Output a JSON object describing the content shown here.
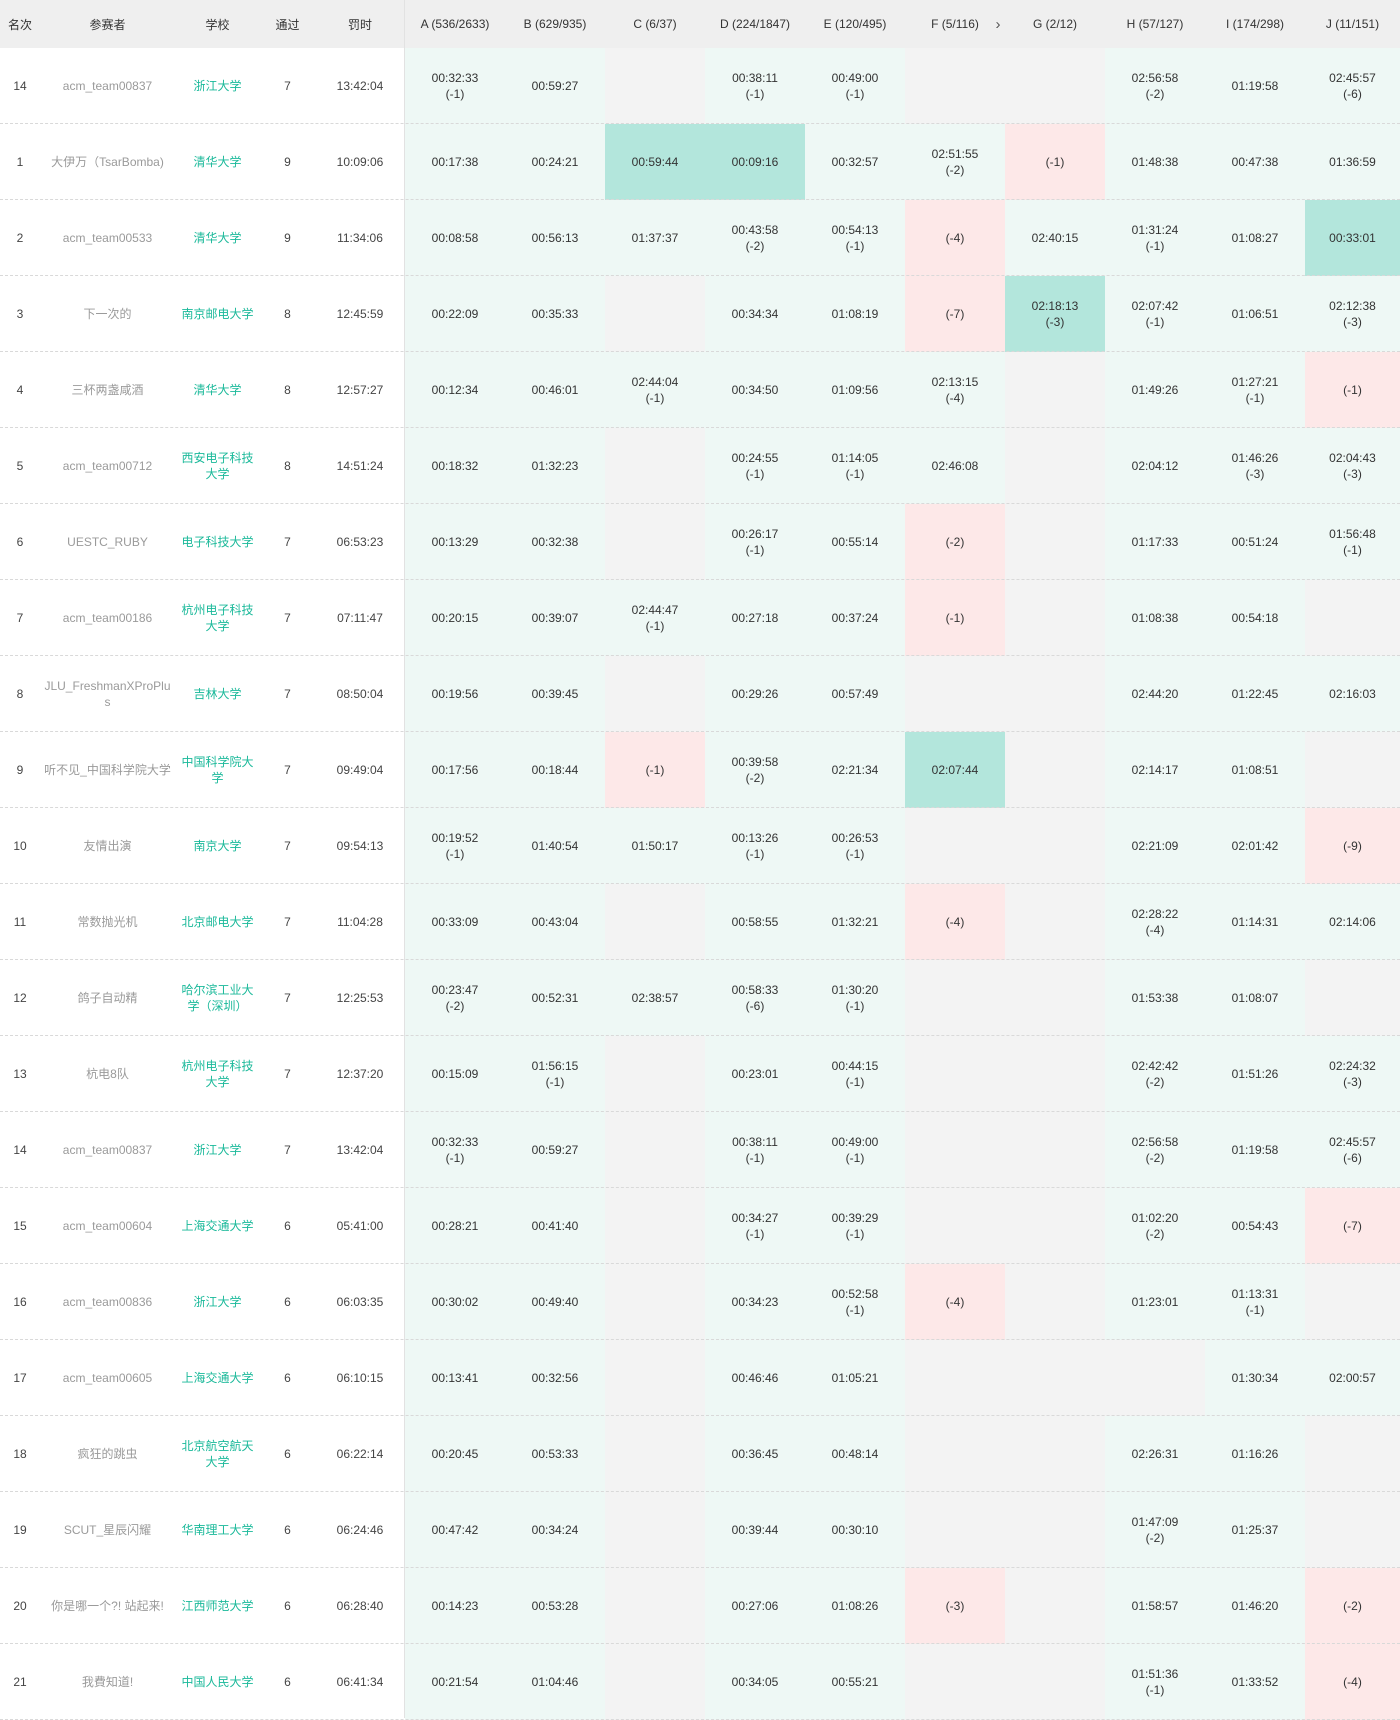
{
  "headers": [
    "名次",
    "参赛者",
    "学校",
    "通过",
    "罚时",
    "A (536/2633)",
    "B (629/935)",
    "C (6/37)",
    "D (224/1847)",
    "E (120/495)",
    "F (5/116)",
    "G (2/12)",
    "H (57/127)",
    "I (174/298)",
    "J (11/151)"
  ],
  "header_chevron": "›",
  "colors": {
    "accepted": "#eef8f5",
    "first_blood": "#b3e6dc",
    "wrong": "#fde8e8",
    "empty": "#f3f3f3",
    "school_link": "#1bb99a",
    "name_text": "#9a9a9a"
  },
  "rows": [
    {
      "rank": "14",
      "name": "acm_team00837",
      "school": "浙江大学",
      "solved": "7",
      "penalty": "13:42:04",
      "problems": [
        {
          "s": "ac",
          "t": "00:32:33",
          "n": "(-1)"
        },
        {
          "s": "ac",
          "t": "00:59:27"
        },
        {
          "s": "none"
        },
        {
          "s": "ac",
          "t": "00:38:11",
          "n": "(-1)"
        },
        {
          "s": "ac",
          "t": "00:49:00",
          "n": "(-1)"
        },
        {
          "s": "none"
        },
        {
          "s": "none"
        },
        {
          "s": "ac",
          "t": "02:56:58",
          "n": "(-2)"
        },
        {
          "s": "ac",
          "t": "01:19:58"
        },
        {
          "s": "ac",
          "t": "02:45:57",
          "n": "(-6)"
        }
      ]
    },
    {
      "rank": "1",
      "name": "大伊万（TsarBomba)",
      "school": "清华大学",
      "solved": "9",
      "penalty": "10:09:06",
      "problems": [
        {
          "s": "ac",
          "t": "00:17:38"
        },
        {
          "s": "ac",
          "t": "00:24:21"
        },
        {
          "s": "first",
          "t": "00:59:44"
        },
        {
          "s": "first",
          "t": "00:09:16"
        },
        {
          "s": "ac",
          "t": "00:32:57"
        },
        {
          "s": "ac",
          "t": "02:51:55",
          "n": "(-2)"
        },
        {
          "s": "wa",
          "t": "(-1)"
        },
        {
          "s": "ac",
          "t": "01:48:38"
        },
        {
          "s": "ac",
          "t": "00:47:38"
        },
        {
          "s": "ac",
          "t": "01:36:59"
        }
      ]
    },
    {
      "rank": "2",
      "name": "acm_team00533",
      "school": "清华大学",
      "solved": "9",
      "penalty": "11:34:06",
      "problems": [
        {
          "s": "ac",
          "t": "00:08:58"
        },
        {
          "s": "ac",
          "t": "00:56:13"
        },
        {
          "s": "ac",
          "t": "01:37:37"
        },
        {
          "s": "ac",
          "t": "00:43:58",
          "n": "(-2)"
        },
        {
          "s": "ac",
          "t": "00:54:13",
          "n": "(-1)"
        },
        {
          "s": "wa",
          "t": "(-4)"
        },
        {
          "s": "ac",
          "t": "02:40:15"
        },
        {
          "s": "ac",
          "t": "01:31:24",
          "n": "(-1)"
        },
        {
          "s": "ac",
          "t": "01:08:27"
        },
        {
          "s": "first",
          "t": "00:33:01"
        }
      ]
    },
    {
      "rank": "3",
      "name": "下一次的",
      "school": "南京邮电大学",
      "solved": "8",
      "penalty": "12:45:59",
      "problems": [
        {
          "s": "ac",
          "t": "00:22:09"
        },
        {
          "s": "ac",
          "t": "00:35:33"
        },
        {
          "s": "none"
        },
        {
          "s": "ac",
          "t": "00:34:34"
        },
        {
          "s": "ac",
          "t": "01:08:19"
        },
        {
          "s": "wa",
          "t": "(-7)"
        },
        {
          "s": "first",
          "t": "02:18:13",
          "n": "(-3)"
        },
        {
          "s": "ac",
          "t": "02:07:42",
          "n": "(-1)"
        },
        {
          "s": "ac",
          "t": "01:06:51"
        },
        {
          "s": "ac",
          "t": "02:12:38",
          "n": "(-3)"
        }
      ]
    },
    {
      "rank": "4",
      "name": "三杯两盏咸酒",
      "school": "清华大学",
      "solved": "8",
      "penalty": "12:57:27",
      "problems": [
        {
          "s": "ac",
          "t": "00:12:34"
        },
        {
          "s": "ac",
          "t": "00:46:01"
        },
        {
          "s": "ac",
          "t": "02:44:04",
          "n": "(-1)"
        },
        {
          "s": "ac",
          "t": "00:34:50"
        },
        {
          "s": "ac",
          "t": "01:09:56"
        },
        {
          "s": "ac",
          "t": "02:13:15",
          "n": "(-4)"
        },
        {
          "s": "none"
        },
        {
          "s": "ac",
          "t": "01:49:26"
        },
        {
          "s": "ac",
          "t": "01:27:21",
          "n": "(-1)"
        },
        {
          "s": "wa",
          "t": "(-1)"
        }
      ]
    },
    {
      "rank": "5",
      "name": "acm_team00712",
      "school": "西安电子科技大学",
      "solved": "8",
      "penalty": "14:51:24",
      "problems": [
        {
          "s": "ac",
          "t": "00:18:32"
        },
        {
          "s": "ac",
          "t": "01:32:23"
        },
        {
          "s": "none"
        },
        {
          "s": "ac",
          "t": "00:24:55",
          "n": "(-1)"
        },
        {
          "s": "ac",
          "t": "01:14:05",
          "n": "(-1)"
        },
        {
          "s": "ac",
          "t": "02:46:08"
        },
        {
          "s": "none"
        },
        {
          "s": "ac",
          "t": "02:04:12"
        },
        {
          "s": "ac",
          "t": "01:46:26",
          "n": "(-3)"
        },
        {
          "s": "ac",
          "t": "02:04:43",
          "n": "(-3)"
        }
      ]
    },
    {
      "rank": "6",
      "name": "UESTC_RUBY",
      "school": "电子科技大学",
      "solved": "7",
      "penalty": "06:53:23",
      "problems": [
        {
          "s": "ac",
          "t": "00:13:29"
        },
        {
          "s": "ac",
          "t": "00:32:38"
        },
        {
          "s": "none"
        },
        {
          "s": "ac",
          "t": "00:26:17",
          "n": "(-1)"
        },
        {
          "s": "ac",
          "t": "00:55:14"
        },
        {
          "s": "wa",
          "t": "(-2)"
        },
        {
          "s": "none"
        },
        {
          "s": "ac",
          "t": "01:17:33"
        },
        {
          "s": "ac",
          "t": "00:51:24"
        },
        {
          "s": "ac",
          "t": "01:56:48",
          "n": "(-1)"
        }
      ]
    },
    {
      "rank": "7",
      "name": "acm_team00186",
      "school": "杭州电子科技大学",
      "solved": "7",
      "penalty": "07:11:47",
      "problems": [
        {
          "s": "ac",
          "t": "00:20:15"
        },
        {
          "s": "ac",
          "t": "00:39:07"
        },
        {
          "s": "ac",
          "t": "02:44:47",
          "n": "(-1)"
        },
        {
          "s": "ac",
          "t": "00:27:18"
        },
        {
          "s": "ac",
          "t": "00:37:24"
        },
        {
          "s": "wa",
          "t": "(-1)"
        },
        {
          "s": "none"
        },
        {
          "s": "ac",
          "t": "01:08:38"
        },
        {
          "s": "ac",
          "t": "00:54:18"
        },
        {
          "s": "none"
        }
      ]
    },
    {
      "rank": "8",
      "name": "JLU_FreshmanXProPlus",
      "school": "吉林大学",
      "solved": "7",
      "penalty": "08:50:04",
      "problems": [
        {
          "s": "ac",
          "t": "00:19:56"
        },
        {
          "s": "ac",
          "t": "00:39:45"
        },
        {
          "s": "none"
        },
        {
          "s": "ac",
          "t": "00:29:26"
        },
        {
          "s": "ac",
          "t": "00:57:49"
        },
        {
          "s": "none"
        },
        {
          "s": "none"
        },
        {
          "s": "ac",
          "t": "02:44:20"
        },
        {
          "s": "ac",
          "t": "01:22:45"
        },
        {
          "s": "ac",
          "t": "02:16:03"
        }
      ]
    },
    {
      "rank": "9",
      "name": "听不见_中国科学院大学",
      "school": "中国科学院大学",
      "solved": "7",
      "penalty": "09:49:04",
      "problems": [
        {
          "s": "ac",
          "t": "00:17:56"
        },
        {
          "s": "ac",
          "t": "00:18:44"
        },
        {
          "s": "wa",
          "t": "(-1)"
        },
        {
          "s": "ac",
          "t": "00:39:58",
          "n": "(-2)"
        },
        {
          "s": "ac",
          "t": "02:21:34"
        },
        {
          "s": "first",
          "t": "02:07:44"
        },
        {
          "s": "none"
        },
        {
          "s": "ac",
          "t": "02:14:17"
        },
        {
          "s": "ac",
          "t": "01:08:51"
        },
        {
          "s": "none"
        }
      ]
    },
    {
      "rank": "10",
      "name": "友情出演",
      "school": "南京大学",
      "solved": "7",
      "penalty": "09:54:13",
      "problems": [
        {
          "s": "ac",
          "t": "00:19:52",
          "n": "(-1)"
        },
        {
          "s": "ac",
          "t": "01:40:54"
        },
        {
          "s": "ac",
          "t": "01:50:17"
        },
        {
          "s": "ac",
          "t": "00:13:26",
          "n": "(-1)"
        },
        {
          "s": "ac",
          "t": "00:26:53",
          "n": "(-1)"
        },
        {
          "s": "none"
        },
        {
          "s": "none"
        },
        {
          "s": "ac",
          "t": "02:21:09"
        },
        {
          "s": "ac",
          "t": "02:01:42"
        },
        {
          "s": "wa",
          "t": "(-9)"
        }
      ]
    },
    {
      "rank": "11",
      "name": "常数抛光机",
      "school": "北京邮电大学",
      "solved": "7",
      "penalty": "11:04:28",
      "problems": [
        {
          "s": "ac",
          "t": "00:33:09"
        },
        {
          "s": "ac",
          "t": "00:43:04"
        },
        {
          "s": "none"
        },
        {
          "s": "ac",
          "t": "00:58:55"
        },
        {
          "s": "ac",
          "t": "01:32:21"
        },
        {
          "s": "wa",
          "t": "(-4)"
        },
        {
          "s": "none"
        },
        {
          "s": "ac",
          "t": "02:28:22",
          "n": "(-4)"
        },
        {
          "s": "ac",
          "t": "01:14:31"
        },
        {
          "s": "ac",
          "t": "02:14:06"
        }
      ]
    },
    {
      "rank": "12",
      "name": "鸽子自动精",
      "school": "哈尔滨工业大学（深圳）",
      "solved": "7",
      "penalty": "12:25:53",
      "problems": [
        {
          "s": "ac",
          "t": "00:23:47",
          "n": "(-2)"
        },
        {
          "s": "ac",
          "t": "00:52:31"
        },
        {
          "s": "ac",
          "t": "02:38:57"
        },
        {
          "s": "ac",
          "t": "00:58:33",
          "n": "(-6)"
        },
        {
          "s": "ac",
          "t": "01:30:20",
          "n": "(-1)"
        },
        {
          "s": "none"
        },
        {
          "s": "none"
        },
        {
          "s": "ac",
          "t": "01:53:38"
        },
        {
          "s": "ac",
          "t": "01:08:07"
        },
        {
          "s": "none"
        }
      ]
    },
    {
      "rank": "13",
      "name": "杭电8队",
      "school": "杭州电子科技大学",
      "solved": "7",
      "penalty": "12:37:20",
      "problems": [
        {
          "s": "ac",
          "t": "00:15:09"
        },
        {
          "s": "ac",
          "t": "01:56:15",
          "n": "(-1)"
        },
        {
          "s": "none"
        },
        {
          "s": "ac",
          "t": "00:23:01"
        },
        {
          "s": "ac",
          "t": "00:44:15",
          "n": "(-1)"
        },
        {
          "s": "none"
        },
        {
          "s": "none"
        },
        {
          "s": "ac",
          "t": "02:42:42",
          "n": "(-2)"
        },
        {
          "s": "ac",
          "t": "01:51:26"
        },
        {
          "s": "ac",
          "t": "02:24:32",
          "n": "(-3)"
        }
      ]
    },
    {
      "rank": "14",
      "name": "acm_team00837",
      "school": "浙江大学",
      "solved": "7",
      "penalty": "13:42:04",
      "problems": [
        {
          "s": "ac",
          "t": "00:32:33",
          "n": "(-1)"
        },
        {
          "s": "ac",
          "t": "00:59:27"
        },
        {
          "s": "none"
        },
        {
          "s": "ac",
          "t": "00:38:11",
          "n": "(-1)"
        },
        {
          "s": "ac",
          "t": "00:49:00",
          "n": "(-1)"
        },
        {
          "s": "none"
        },
        {
          "s": "none"
        },
        {
          "s": "ac",
          "t": "02:56:58",
          "n": "(-2)"
        },
        {
          "s": "ac",
          "t": "01:19:58"
        },
        {
          "s": "ac",
          "t": "02:45:57",
          "n": "(-6)"
        }
      ]
    },
    {
      "rank": "15",
      "name": "acm_team00604",
      "school": "上海交通大学",
      "solved": "6",
      "penalty": "05:41:00",
      "problems": [
        {
          "s": "ac",
          "t": "00:28:21"
        },
        {
          "s": "ac",
          "t": "00:41:40"
        },
        {
          "s": "none"
        },
        {
          "s": "ac",
          "t": "00:34:27",
          "n": "(-1)"
        },
        {
          "s": "ac",
          "t": "00:39:29",
          "n": "(-1)"
        },
        {
          "s": "none"
        },
        {
          "s": "none"
        },
        {
          "s": "ac",
          "t": "01:02:20",
          "n": "(-2)"
        },
        {
          "s": "ac",
          "t": "00:54:43"
        },
        {
          "s": "wa",
          "t": "(-7)"
        }
      ]
    },
    {
      "rank": "16",
      "name": "acm_team00836",
      "school": "浙江大学",
      "solved": "6",
      "penalty": "06:03:35",
      "problems": [
        {
          "s": "ac",
          "t": "00:30:02"
        },
        {
          "s": "ac",
          "t": "00:49:40"
        },
        {
          "s": "none"
        },
        {
          "s": "ac",
          "t": "00:34:23"
        },
        {
          "s": "ac",
          "t": "00:52:58",
          "n": "(-1)"
        },
        {
          "s": "wa",
          "t": "(-4)"
        },
        {
          "s": "none"
        },
        {
          "s": "ac",
          "t": "01:23:01"
        },
        {
          "s": "ac",
          "t": "01:13:31",
          "n": "(-1)"
        },
        {
          "s": "none"
        }
      ]
    },
    {
      "rank": "17",
      "name": "acm_team00605",
      "school": "上海交通大学",
      "solved": "6",
      "penalty": "06:10:15",
      "problems": [
        {
          "s": "ac",
          "t": "00:13:41"
        },
        {
          "s": "ac",
          "t": "00:32:56"
        },
        {
          "s": "none"
        },
        {
          "s": "ac",
          "t": "00:46:46"
        },
        {
          "s": "ac",
          "t": "01:05:21"
        },
        {
          "s": "none"
        },
        {
          "s": "none"
        },
        {
          "s": "none"
        },
        {
          "s": "ac",
          "t": "01:30:34"
        },
        {
          "s": "ac",
          "t": "02:00:57"
        }
      ]
    },
    {
      "rank": "18",
      "name": "疯狂的跳虫",
      "school": "北京航空航天大学",
      "solved": "6",
      "penalty": "06:22:14",
      "problems": [
        {
          "s": "ac",
          "t": "00:20:45"
        },
        {
          "s": "ac",
          "t": "00:53:33"
        },
        {
          "s": "none"
        },
        {
          "s": "ac",
          "t": "00:36:45"
        },
        {
          "s": "ac",
          "t": "00:48:14"
        },
        {
          "s": "none"
        },
        {
          "s": "none"
        },
        {
          "s": "ac",
          "t": "02:26:31"
        },
        {
          "s": "ac",
          "t": "01:16:26"
        },
        {
          "s": "none"
        }
      ]
    },
    {
      "rank": "19",
      "name": "SCUT_星辰闪耀",
      "school": "华南理工大学",
      "solved": "6",
      "penalty": "06:24:46",
      "problems": [
        {
          "s": "ac",
          "t": "00:47:42"
        },
        {
          "s": "ac",
          "t": "00:34:24"
        },
        {
          "s": "none"
        },
        {
          "s": "ac",
          "t": "00:39:44"
        },
        {
          "s": "ac",
          "t": "00:30:10"
        },
        {
          "s": "none"
        },
        {
          "s": "none"
        },
        {
          "s": "ac",
          "t": "01:47:09",
          "n": "(-2)"
        },
        {
          "s": "ac",
          "t": "01:25:37"
        },
        {
          "s": "none"
        }
      ]
    },
    {
      "rank": "20",
      "name": "你是哪一个?! 站起来!",
      "school": "江西师范大学",
      "solved": "6",
      "penalty": "06:28:40",
      "problems": [
        {
          "s": "ac",
          "t": "00:14:23"
        },
        {
          "s": "ac",
          "t": "00:53:28"
        },
        {
          "s": "none"
        },
        {
          "s": "ac",
          "t": "00:27:06"
        },
        {
          "s": "ac",
          "t": "01:08:26"
        },
        {
          "s": "wa",
          "t": "(-3)"
        },
        {
          "s": "none"
        },
        {
          "s": "ac",
          "t": "01:58:57"
        },
        {
          "s": "ac",
          "t": "01:46:20"
        },
        {
          "s": "wa",
          "t": "(-2)"
        }
      ]
    },
    {
      "rank": "21",
      "name": "我費知道!",
      "school": "中国人民大学",
      "solved": "6",
      "penalty": "06:41:34",
      "problems": [
        {
          "s": "ac",
          "t": "00:21:54"
        },
        {
          "s": "ac",
          "t": "01:04:46"
        },
        {
          "s": "none"
        },
        {
          "s": "ac",
          "t": "00:34:05"
        },
        {
          "s": "ac",
          "t": "00:55:21"
        },
        {
          "s": "none"
        },
        {
          "s": "none"
        },
        {
          "s": "ac",
          "t": "01:51:36",
          "n": "(-1)"
        },
        {
          "s": "ac",
          "t": "01:33:52"
        },
        {
          "s": "wa",
          "t": "(-4)"
        }
      ]
    }
  ]
}
